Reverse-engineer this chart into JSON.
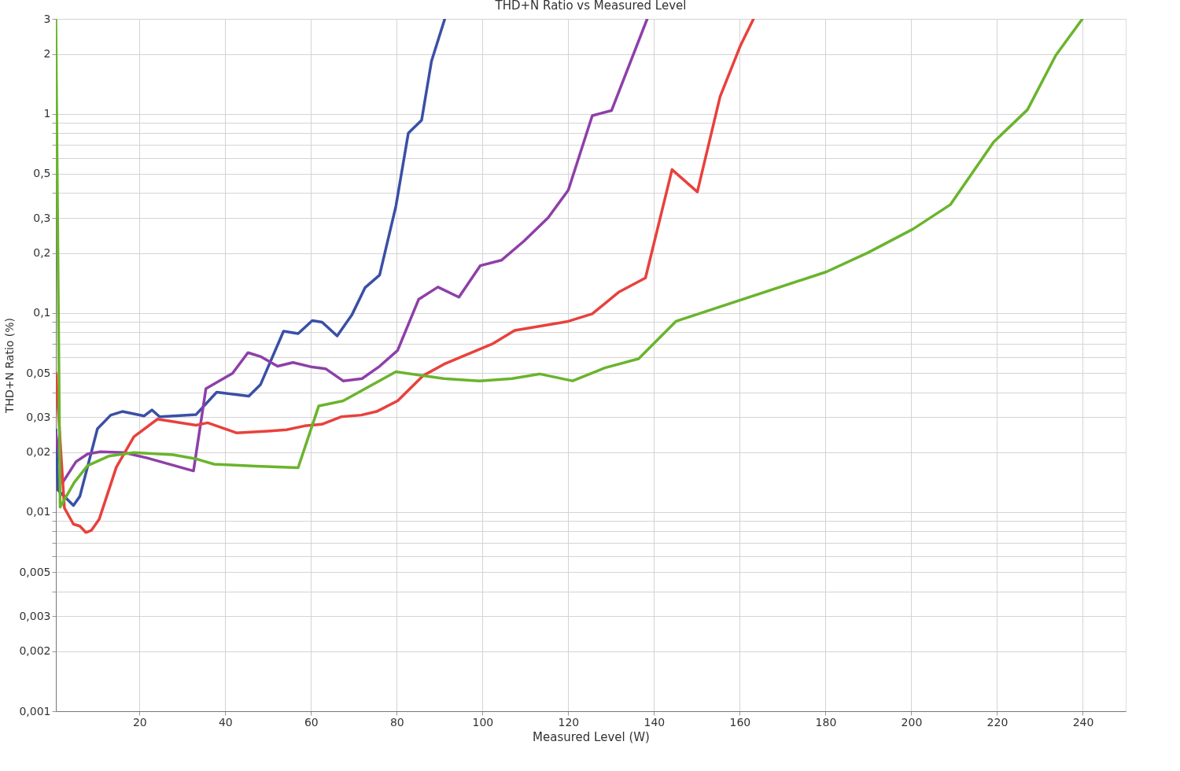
{
  "chart_data": {
    "type": "line",
    "title": "THD+N Ratio vs Measured Level",
    "xlabel": "Measured Level (W)",
    "ylabel": "THD+N Ratio (%)",
    "log": "y",
    "grid": true,
    "legend": false,
    "marker": "none",
    "line_style": "solid",
    "xlim": [
      0.5,
      250
    ],
    "xticks": [
      20,
      40,
      60,
      80,
      100,
      120,
      140,
      160,
      180,
      200,
      220,
      240
    ],
    "ylim": [
      0.001,
      3
    ],
    "yticks": [
      {
        "value": 0.001,
        "label": "0,001"
      },
      {
        "value": 0.002,
        "label": "0,002"
      },
      {
        "value": 0.003,
        "label": "0,003"
      },
      {
        "value": 0.004,
        "label": null
      },
      {
        "value": 0.005,
        "label": "0,005"
      },
      {
        "value": 0.006,
        "label": null
      },
      {
        "value": 0.007,
        "label": null
      },
      {
        "value": 0.008,
        "label": null
      },
      {
        "value": 0.009,
        "label": null
      },
      {
        "value": 0.01,
        "label": "0,01"
      },
      {
        "value": 0.02,
        "label": "0,02"
      },
      {
        "value": 0.03,
        "label": "0,03"
      },
      {
        "value": 0.04,
        "label": null
      },
      {
        "value": 0.05,
        "label": "0,05"
      },
      {
        "value": 0.06,
        "label": null
      },
      {
        "value": 0.07,
        "label": null
      },
      {
        "value": 0.08,
        "label": null
      },
      {
        "value": 0.09,
        "label": null
      },
      {
        "value": 0.1,
        "label": "0,1"
      },
      {
        "value": 0.2,
        "label": "0,2"
      },
      {
        "value": 0.3,
        "label": "0,3"
      },
      {
        "value": 0.4,
        "label": null
      },
      {
        "value": 0.5,
        "label": "0,5"
      },
      {
        "value": 0.6,
        "label": null
      },
      {
        "value": 0.7,
        "label": null
      },
      {
        "value": 0.8,
        "label": null
      },
      {
        "value": 0.9,
        "label": null
      },
      {
        "value": 1,
        "label": "1"
      },
      {
        "value": 2,
        "label": "2"
      },
      {
        "value": 3,
        "label": "3"
      }
    ],
    "series": [
      {
        "color": "#3a4fa6",
        "x": [
          0.5,
          1.0,
          4.6,
          6.1,
          10.2,
          13.3,
          16.0,
          21.1,
          22.9,
          24.7,
          33.2,
          38.0,
          45.5,
          48.2,
          53.6,
          57.0,
          60.3,
          62.6,
          66.1,
          69.5,
          72.6,
          76.0,
          79.8,
          82.7,
          85.8,
          88.1,
          91.2
        ],
        "values": [
          0.026,
          0.0129,
          0.0108,
          0.012,
          0.0262,
          0.0307,
          0.032,
          0.0304,
          0.0326,
          0.0301,
          0.0309,
          0.04,
          0.0382,
          0.0436,
          0.081,
          0.0788,
          0.0916,
          0.09,
          0.0767,
          0.0975,
          0.134,
          0.155,
          0.344,
          0.8,
          0.93,
          1.84,
          3
        ]
      },
      {
        "color": "#8e3fa8",
        "x": [
          0.5,
          2.1,
          5.2,
          7.9,
          10.9,
          16.4,
          21.8,
          32.6,
          35.5,
          41.7,
          45.3,
          48.2,
          52.2,
          55.8,
          60.3,
          63.4,
          67.5,
          71.9,
          76.0,
          80.2,
          85.1,
          89.6,
          94.5,
          99.5,
          104.4,
          109.6,
          115.3,
          120.0,
          125.6,
          130.1,
          138.4
        ],
        "values": [
          0.025,
          0.0141,
          0.0179,
          0.0196,
          0.0201,
          0.0199,
          0.0187,
          0.0161,
          0.0417,
          0.0498,
          0.0632,
          0.0605,
          0.054,
          0.0564,
          0.0535,
          0.0525,
          0.0456,
          0.0468,
          0.054,
          0.0649,
          0.117,
          0.135,
          0.12,
          0.173,
          0.184,
          0.229,
          0.301,
          0.414,
          0.98,
          1.04,
          3
        ]
      },
      {
        "color": "#e8413c",
        "x": [
          0.5,
          2.5,
          4.6,
          6.1,
          7.5,
          8.8,
          10.6,
          14.6,
          18.7,
          24.2,
          33.2,
          35.9,
          42.6,
          50.0,
          54.3,
          58.5,
          62.5,
          67.0,
          71.7,
          75.3,
          80.2,
          86.2,
          91.0,
          102.5,
          107.5,
          120.0,
          125.6,
          131.7,
          138.0,
          144.2,
          150.1,
          155.4,
          160.1,
          163.2
        ],
        "values": [
          0.05,
          0.0105,
          0.0087,
          0.0085,
          0.0079,
          0.0081,
          0.0092,
          0.0168,
          0.0239,
          0.0293,
          0.0273,
          0.0281,
          0.025,
          0.0255,
          0.0259,
          0.0271,
          0.0276,
          0.0301,
          0.0307,
          0.032,
          0.0362,
          0.0485,
          0.0553,
          0.0703,
          0.0817,
          0.0908,
          0.099,
          0.127,
          0.15,
          0.525,
          0.406,
          1.22,
          2.19,
          3
        ]
      },
      {
        "color": "#6ab42d",
        "x": [
          0.5,
          1.5,
          4.8,
          7.9,
          12.8,
          18.7,
          27.8,
          33.2,
          37.4,
          47.1,
          57.0,
          61.8,
          67.5,
          79.8,
          91.0,
          99.3,
          106.9,
          113.4,
          121.0,
          128.5,
          136.4,
          145.1,
          180.2,
          189.9,
          200.4,
          209.1,
          219.2,
          227.1,
          233.7,
          239.9
        ],
        "values": [
          3,
          0.0106,
          0.0141,
          0.0171,
          0.0191,
          0.0199,
          0.0194,
          0.0185,
          0.0174,
          0.017,
          0.0167,
          0.0341,
          0.0362,
          0.0507,
          0.0468,
          0.0456,
          0.0468,
          0.0494,
          0.0456,
          0.053,
          0.0589,
          0.0908,
          0.161,
          0.201,
          0.264,
          0.35,
          0.722,
          1.05,
          1.97,
          3
        ]
      }
    ]
  }
}
